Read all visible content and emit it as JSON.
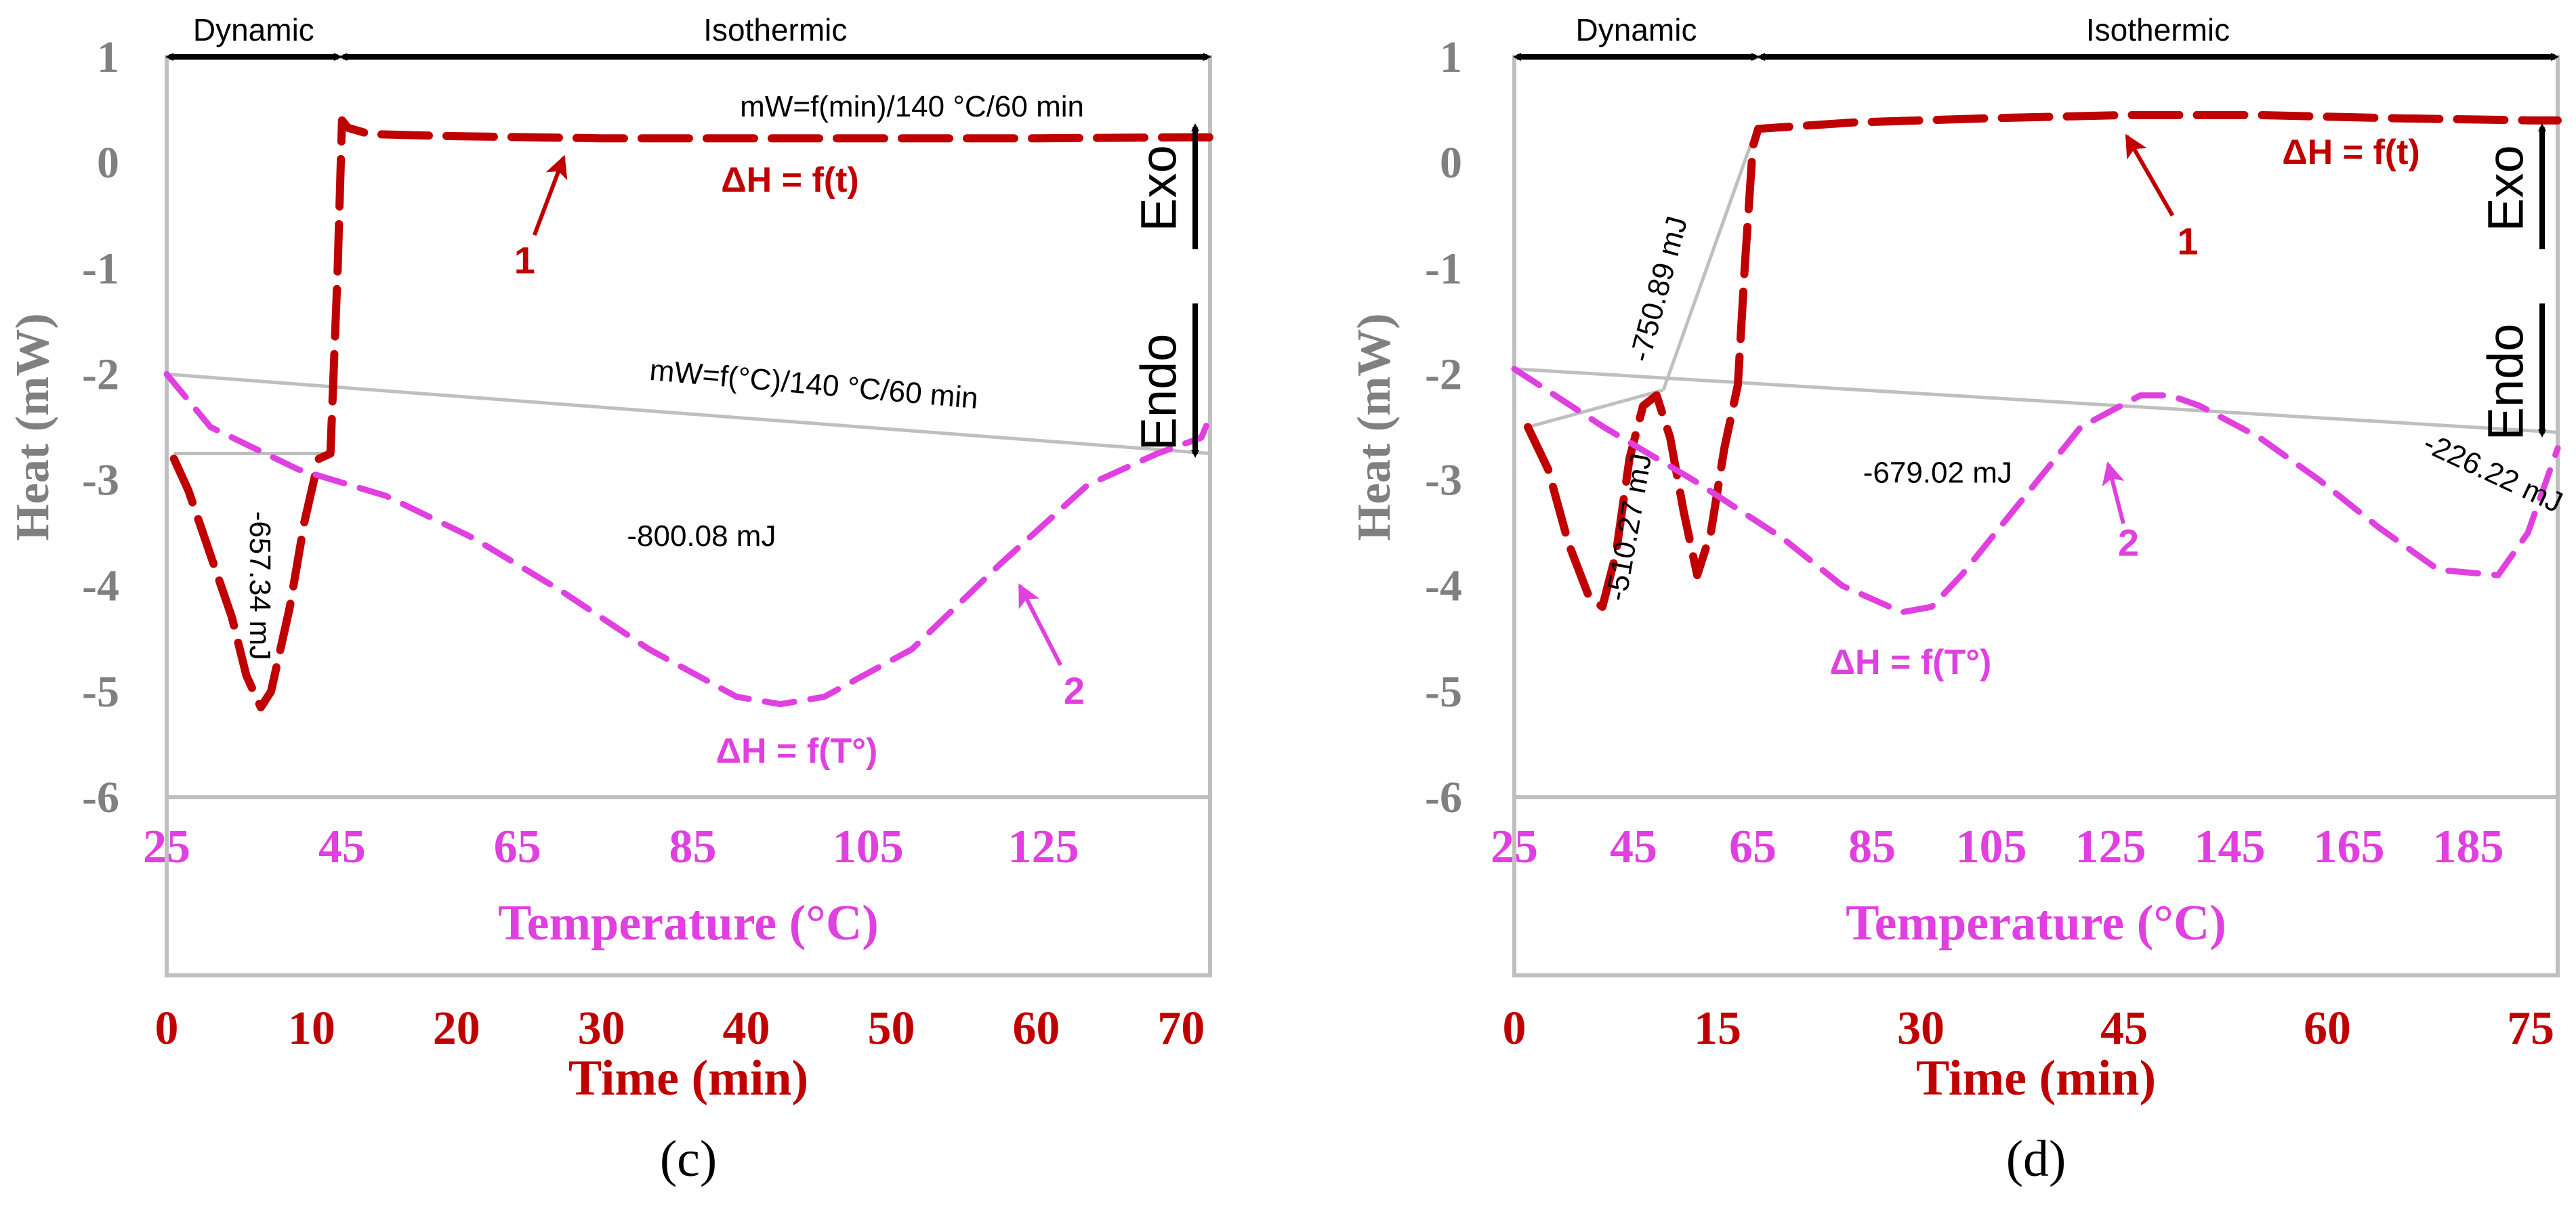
{
  "colors": {
    "time_curve": "#c00000",
    "temp_curve": "#e040e0",
    "frame": "#bfbfbf",
    "text": "#000000",
    "axis_label": "#808080"
  },
  "chart_data": [
    {
      "type": "line",
      "panel_label": "(c)",
      "ylabel": "Heat (mW)",
      "ylim": [
        -6,
        1
      ],
      "y_ticks": [
        "1",
        "0",
        "-1",
        "-2",
        "-3",
        "-4",
        "-5",
        "-6"
      ],
      "time_axis": {
        "label": "Time (min)",
        "range": [
          0,
          72
        ],
        "ticks": [
          "0",
          "10",
          "20",
          "30",
          "40",
          "50",
          "60",
          "70"
        ],
        "tick_values": [
          0,
          10,
          20,
          30,
          40,
          50,
          60,
          70
        ]
      },
      "temp_axis": {
        "label": "Temperature (°C)",
        "range": [
          25,
          144
        ],
        "ticks": [
          "25",
          "45",
          "65",
          "85",
          "105",
          "125"
        ],
        "tick_values": [
          25,
          45,
          65,
          85,
          105,
          125
        ]
      },
      "phases": [
        {
          "label": "Dynamic",
          "from": 0,
          "to": 12
        },
        {
          "label": "Isothermic",
          "from": 12,
          "to": 72
        }
      ],
      "exo_label": "Exo",
      "endo_label": "Endo",
      "series": [
        {
          "name": "1",
          "axis": "time",
          "curve_label": "ΔH = f(t)",
          "subtitle": "mW=f(min)/140 °C/60 min",
          "x": [
            0.5,
            1.5,
            3,
            4.5,
            5.5,
            6.5,
            7.2,
            8.5,
            9.5,
            10.5,
            11.3,
            11.8,
            12.1,
            12.5,
            14,
            20,
            30,
            40,
            50,
            60,
            70,
            72
          ],
          "y": [
            -2.8,
            -3.1,
            -3.7,
            -4.3,
            -4.85,
            -5.15,
            -5.0,
            -4.2,
            -3.4,
            -2.8,
            -2.75,
            -1.0,
            0.4,
            0.33,
            0.27,
            0.25,
            0.23,
            0.23,
            0.23,
            0.23,
            0.24,
            0.24
          ]
        },
        {
          "name": "2",
          "axis": "temperature",
          "curve_label": "ΔH = f(T°)",
          "subtitle": "mW=f(°C)/140 °C/60 min",
          "x": [
            25,
            30,
            40,
            50,
            60,
            70,
            80,
            90,
            95,
            100,
            110,
            120,
            130,
            138,
            143,
            144
          ],
          "y": [
            -2.0,
            -2.5,
            -2.9,
            -3.15,
            -3.55,
            -4.05,
            -4.6,
            -5.05,
            -5.12,
            -5.05,
            -4.6,
            -3.8,
            -3.05,
            -2.75,
            -2.6,
            -2.4
          ]
        }
      ],
      "baselines": [
        {
          "axis": "time",
          "x": [
            0.5,
            11.5
          ],
          "y": [
            -2.75,
            -2.75
          ]
        },
        {
          "axis": "temperature",
          "x": [
            25,
            144
          ],
          "y": [
            -2.0,
            -2.75
          ]
        }
      ],
      "annotations": [
        {
          "text": "-657.34 mJ",
          "axis": "time",
          "x": 6.3,
          "y": -4.0,
          "rotate": 90
        },
        {
          "text": "-800.08 mJ",
          "axis": "temperature",
          "x": 86,
          "y": -3.55,
          "rotate": 0
        }
      ],
      "arrows": [
        {
          "label": "1",
          "axis": "time",
          "x": 24.7,
          "y": -0.93,
          "to_x": 27.4,
          "to_y": 0.05
        },
        {
          "label": "2",
          "axis": "temperature",
          "x": 128.5,
          "y": -5.0,
          "to_x": 122.3,
          "to_y": -4.0
        }
      ]
    },
    {
      "type": "line",
      "panel_label": "(d)",
      "ylabel": "Heat (mW)",
      "ylim": [
        -6,
        1
      ],
      "y_ticks": [
        "1",
        "0",
        "-1",
        "-2",
        "-3",
        "-4",
        "-5",
        "-6"
      ],
      "time_axis": {
        "label": "Time (min)",
        "range": [
          0,
          77
        ],
        "ticks": [
          "0",
          "15",
          "30",
          "45",
          "60",
          "75"
        ],
        "tick_values": [
          0,
          15,
          30,
          45,
          60,
          75
        ]
      },
      "temp_axis": {
        "label": "Temperature (°C)",
        "range": [
          25,
          200
        ],
        "ticks": [
          "25",
          "45",
          "65",
          "85",
          "105",
          "125",
          "145",
          "165",
          "185"
        ],
        "tick_values": [
          25,
          45,
          65,
          85,
          105,
          125,
          145,
          165,
          185
        ]
      },
      "phases": [
        {
          "label": "Dynamic",
          "from": 0,
          "to": 18
        },
        {
          "label": "Isothermic",
          "from": 18,
          "to": 77
        }
      ],
      "exo_label": "Exo",
      "endo_label": "Endo",
      "series": [
        {
          "name": "1",
          "axis": "time",
          "curve_label": "ΔH = f(t)",
          "x": [
            1,
            2.5,
            4,
            5.5,
            6.5,
            7.5,
            8.5,
            9.5,
            10.5,
            11.5,
            12.5,
            13.5,
            14.5,
            15.5,
            16.5,
            17,
            17.6,
            18,
            25,
            35,
            45,
            55,
            65,
            75,
            77
          ],
          "y": [
            -2.5,
            -2.9,
            -3.6,
            -4.1,
            -4.2,
            -3.7,
            -2.8,
            -2.3,
            -2.2,
            -2.6,
            -3.3,
            -3.9,
            -3.5,
            -2.7,
            -2.1,
            -1.0,
            0.15,
            0.32,
            0.38,
            0.42,
            0.45,
            0.45,
            0.42,
            0.4,
            0.4
          ]
        },
        {
          "name": "2",
          "axis": "temperature",
          "curve_label": "ΔH = f(T°)",
          "x": [
            25,
            40,
            55,
            70,
            80,
            90,
            95,
            100,
            110,
            120,
            130,
            135,
            140,
            150,
            160,
            170,
            180,
            190,
            195,
            200
          ],
          "y": [
            -1.95,
            -2.5,
            -3.0,
            -3.55,
            -4.0,
            -4.25,
            -4.2,
            -3.9,
            -3.2,
            -2.5,
            -2.2,
            -2.2,
            -2.3,
            -2.6,
            -3.0,
            -3.45,
            -3.85,
            -3.9,
            -3.5,
            -2.7
          ]
        }
      ],
      "baselines": [
        {
          "axis": "time",
          "x": [
            1,
            11
          ],
          "y": [
            -2.5,
            -2.15
          ]
        },
        {
          "axis": "temperature",
          "x": [
            25,
            200
          ],
          "y": [
            -1.95,
            -2.55
          ]
        },
        {
          "axis": "time",
          "x": [
            11,
            17.8
          ],
          "y": [
            -2.15,
            0.3
          ]
        }
      ],
      "annotations": [
        {
          "text": "-510.27 mJ",
          "axis": "time",
          "x": 8.6,
          "y": -3.45,
          "rotate": -80
        },
        {
          "text": "-750.89 mJ",
          "axis": "time",
          "x": 10.8,
          "y": -1.2,
          "rotate": -75
        },
        {
          "text": "-679.02 mJ",
          "axis": "temperature",
          "x": 96,
          "y": -2.95,
          "rotate": 0
        },
        {
          "text": "-226.22 mJ",
          "axis": "temperature",
          "x": 189,
          "y": -2.95,
          "rotate": 25
        }
      ],
      "arrows": [
        {
          "label": "1",
          "axis": "time",
          "x": 49.7,
          "y": -0.75,
          "to_x": 45.2,
          "to_y": 0.25
        },
        {
          "label": "2",
          "axis": "temperature",
          "x": 128,
          "y": -3.6,
          "to_x": 124.6,
          "to_y": -2.85
        }
      ]
    }
  ]
}
